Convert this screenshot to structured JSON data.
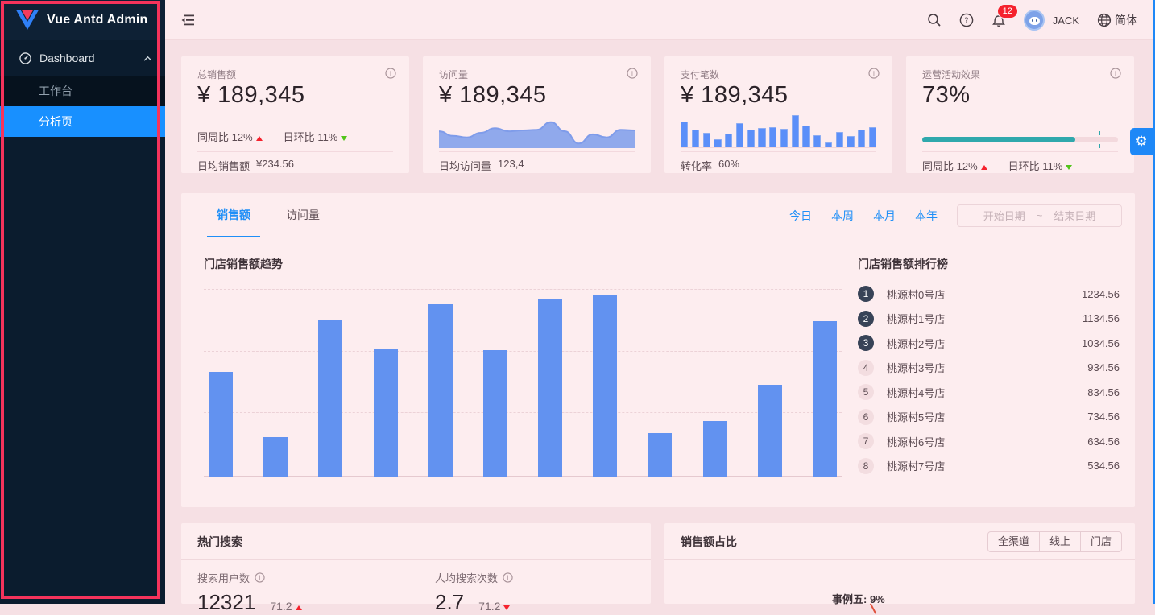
{
  "sidebar": {
    "title": "Vue Antd Admin",
    "dashboard_label": "Dashboard",
    "submenu": [
      {
        "label": "工作台"
      },
      {
        "label": "分析页"
      }
    ]
  },
  "header": {
    "badge_count": "12",
    "user_name": "JACK",
    "language": "简体"
  },
  "cards": [
    {
      "title": "总销售额",
      "value": "¥ 189,345",
      "week_label": "同周比",
      "week_value": "12%",
      "day_label": "日环比",
      "day_value": "11%",
      "footer_label": "日均销售额",
      "footer_value": "¥234.56"
    },
    {
      "title": "访问量",
      "value": "¥ 189,345",
      "footer_label": "日均访问量",
      "footer_value": "123,4"
    },
    {
      "title": "支付笔数",
      "value": "¥ 189,345",
      "footer_label": "转化率",
      "footer_value": "60%"
    },
    {
      "title": "运营活动效果",
      "value": "73%",
      "week_label": "同周比",
      "week_value": "12%",
      "day_label": "日环比",
      "day_value": "11%"
    }
  ],
  "main_panel": {
    "tabs": [
      {
        "label": "销售额"
      },
      {
        "label": "访问量"
      }
    ],
    "quick_links": [
      {
        "label": "今日"
      },
      {
        "label": "本周"
      },
      {
        "label": "本月"
      },
      {
        "label": "本年"
      }
    ],
    "date_start_placeholder": "开始日期",
    "date_separator": "~",
    "date_end_placeholder": "结束日期",
    "chart_title": "门店销售额趋势",
    "ranking_title": "门店销售额排行榜",
    "ranking": [
      {
        "rank": "1",
        "name": "桃源村0号店",
        "value": "1234.56"
      },
      {
        "rank": "2",
        "name": "桃源村1号店",
        "value": "1134.56"
      },
      {
        "rank": "3",
        "name": "桃源村2号店",
        "value": "1034.56"
      },
      {
        "rank": "4",
        "name": "桃源村3号店",
        "value": "934.56"
      },
      {
        "rank": "5",
        "name": "桃源村4号店",
        "value": "834.56"
      },
      {
        "rank": "6",
        "name": "桃源村5号店",
        "value": "734.56"
      },
      {
        "rank": "7",
        "name": "桃源村6号店",
        "value": "634.56"
      },
      {
        "rank": "8",
        "name": "桃源村7号店",
        "value": "534.56"
      }
    ]
  },
  "hot_search": {
    "title": "热门搜索",
    "metrics": [
      {
        "label": "搜索用户数",
        "value": "12321",
        "trend": "71.2",
        "direction": "up"
      },
      {
        "label": "人均搜索次数",
        "value": "2.7",
        "trend": "71.2",
        "direction": "down"
      }
    ]
  },
  "sales_ratio": {
    "title": "销售额占比",
    "buttons": [
      {
        "label": "全渠道"
      },
      {
        "label": "线上"
      },
      {
        "label": "门店"
      }
    ],
    "pie_label": "事例五: 9%"
  },
  "colors": {
    "accent_blue": "#1890ff",
    "bar_blue": "#6292f0",
    "spark_blue": "#5b8ff9",
    "area_blue": "#90a9ec",
    "teal": "#2fa8ac",
    "alert_red": "#f5222d",
    "success_green": "#52c41a",
    "annotation_red": "#f5335b",
    "sidebar_bg": "#0b1c2e"
  },
  "chart_data": [
    {
      "type": "bar",
      "title": "门店销售额趋势",
      "values": [
        560,
        210,
        835,
        680,
        920,
        675,
        945,
        965,
        230,
        295,
        490,
        830
      ],
      "ylim": [
        0,
        1000
      ],
      "grid": "3 dashed horizontal gridlines, no axis tick labels visible",
      "legend": "none"
    },
    {
      "type": "area",
      "title": "访问量 sparkline",
      "values": [
        55,
        40,
        35,
        50,
        65,
        55,
        58,
        60,
        85,
        55,
        15,
        45,
        35,
        60,
        58
      ],
      "ylim": [
        0,
        100
      ]
    },
    {
      "type": "bar",
      "title": "支付笔数 sparkline",
      "values": [
        80,
        55,
        45,
        25,
        42,
        75,
        55,
        60,
        62,
        58,
        100,
        68,
        38,
        15,
        48,
        35,
        55,
        62
      ],
      "ylim": [
        0,
        100
      ]
    },
    {
      "type": "progress",
      "title": "运营活动效果",
      "value": 73,
      "fill_percent": 78,
      "target_percent": 90
    }
  ]
}
